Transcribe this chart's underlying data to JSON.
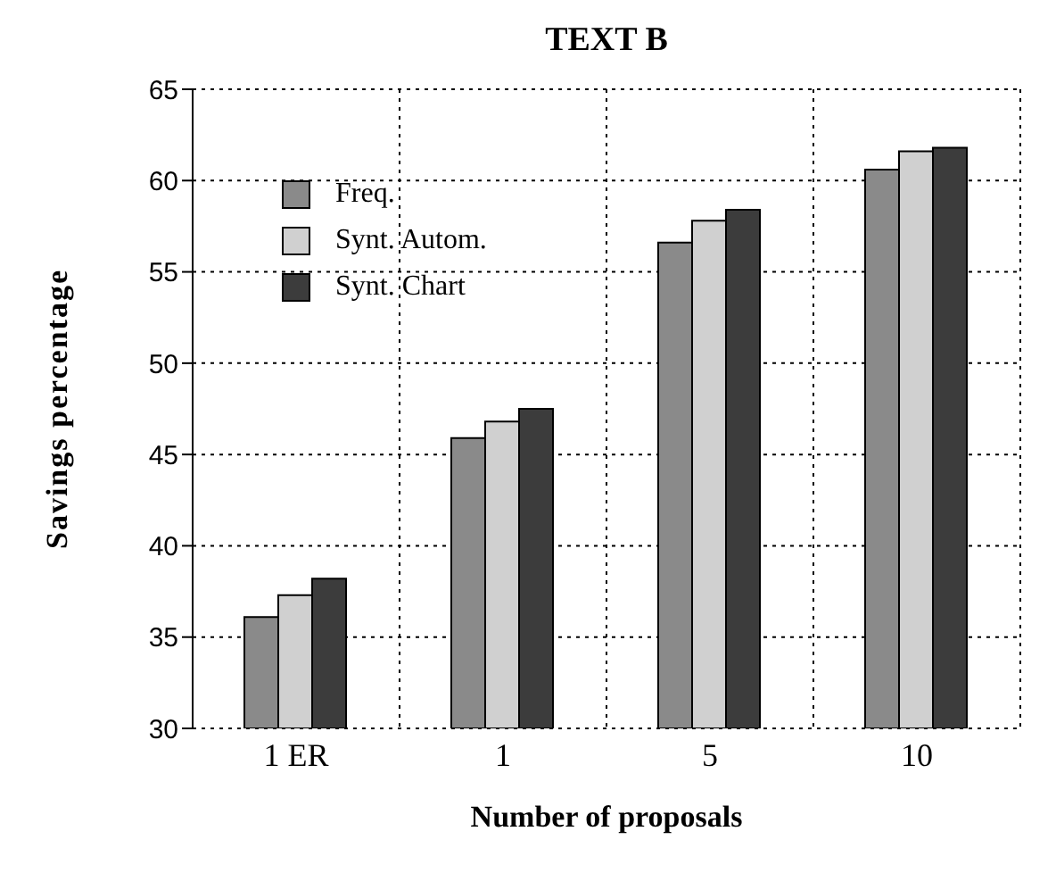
{
  "chart_data": {
    "type": "bar",
    "title": "TEXT B",
    "xlabel": "Number of proposals",
    "ylabel": "Savings percentage",
    "categories": [
      "1 ER",
      "1",
      "5",
      "10"
    ],
    "series": [
      {
        "name": "Freq.",
        "color": "#8a8a8a",
        "values": [
          36.1,
          45.9,
          56.6,
          60.6
        ]
      },
      {
        "name": "Synt. Autom.",
        "color": "#d0d0d0",
        "values": [
          37.3,
          46.8,
          57.8,
          61.6
        ]
      },
      {
        "name": "Synt. Chart",
        "color": "#3c3c3c",
        "values": [
          38.2,
          47.5,
          58.4,
          61.8
        ]
      }
    ],
    "ylim": [
      30,
      65
    ],
    "yticks": [
      30,
      35,
      40,
      45,
      50,
      55,
      60,
      65
    ],
    "grid": true,
    "legend": "top left"
  }
}
